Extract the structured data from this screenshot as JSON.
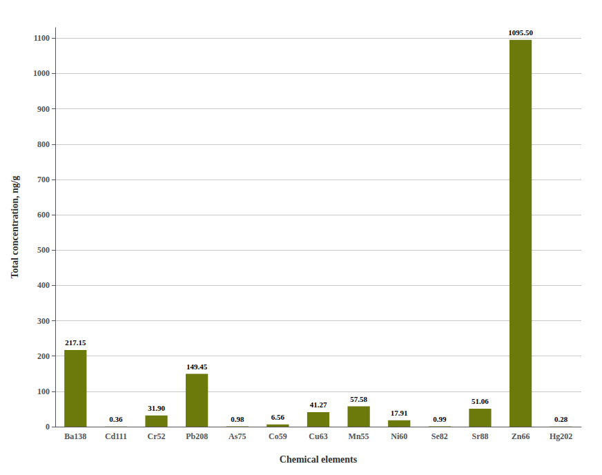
{
  "chart_data": {
    "type": "bar",
    "categories": [
      "Ba138",
      "Cd111",
      "Cr52",
      "Pb208",
      "As75",
      "Co59",
      "Cu63",
      "Mn55",
      "Ni60",
      "Se82",
      "Sr88",
      "Zn66",
      "Hg202"
    ],
    "values": [
      217.15,
      0.36,
      31.9,
      149.45,
      0.98,
      6.56,
      41.27,
      57.58,
      17.91,
      0.99,
      51.06,
      1095.5,
      0.28
    ],
    "value_labels": [
      "217.15",
      "0.36",
      "31.90",
      "149.45",
      "0.98",
      "6.56",
      "41.27",
      "57.58",
      "17.91",
      "0.99",
      "51.06",
      "1095.50",
      "0.28"
    ],
    "data_labels": true,
    "color": "#6b7a0a",
    "xlabel": "Chemical elements",
    "ylabel": "Total concentration, ng/g",
    "ylim": [
      0,
      1130
    ],
    "yticks": [
      0,
      100,
      200,
      300,
      400,
      500,
      600,
      700,
      800,
      900,
      1000,
      1100
    ],
    "grid": true
  }
}
